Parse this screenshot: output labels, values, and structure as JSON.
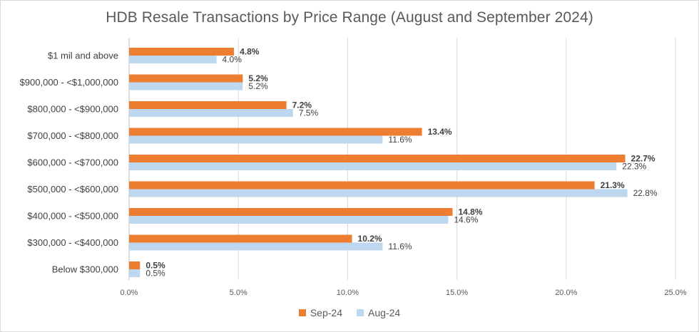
{
  "chart_data": {
    "type": "bar",
    "orientation": "horizontal",
    "title": "HDB Resale Transactions by Price Range (August and September 2024)",
    "categories": [
      "$1 mil and above",
      "$900,000 - <$1,000,000",
      "$800,000 - <$900,000",
      "$700,000 - <$800,000",
      "$600,000 - <$700,000",
      "$500,000 - <$600,000",
      "$400,000 - <$500,000",
      "$300,000 - <$400,000",
      "Below $300,000"
    ],
    "series": [
      {
        "name": "Sep-24",
        "color": "#ed7d31",
        "values": [
          4.8,
          5.2,
          7.2,
          13.4,
          22.7,
          21.3,
          14.8,
          10.2,
          0.5
        ],
        "labels": [
          "4.8%",
          "5.2%",
          "7.2%",
          "13.4%",
          "22.7%",
          "21.3%",
          "14.8%",
          "10.2%",
          "0.5%"
        ],
        "label_bold": true
      },
      {
        "name": "Aug-24",
        "color": "#bdd7ee",
        "values": [
          4.0,
          5.2,
          7.5,
          11.6,
          22.3,
          22.8,
          14.6,
          11.6,
          0.5
        ],
        "labels": [
          "4.0%",
          "5.2%",
          "7.5%",
          "11.6%",
          "22.3%",
          "22.8%",
          "14.6%",
          "11.6%",
          "0.5%"
        ],
        "label_bold": false
      }
    ],
    "xlim": [
      0,
      25
    ],
    "xticks": [
      0,
      5,
      10,
      15,
      20,
      25
    ],
    "xtick_labels": [
      "0.0%",
      "5.0%",
      "10.0%",
      "15.0%",
      "20.0%",
      "25.0%"
    ],
    "grid": true,
    "legend_position": "bottom"
  }
}
